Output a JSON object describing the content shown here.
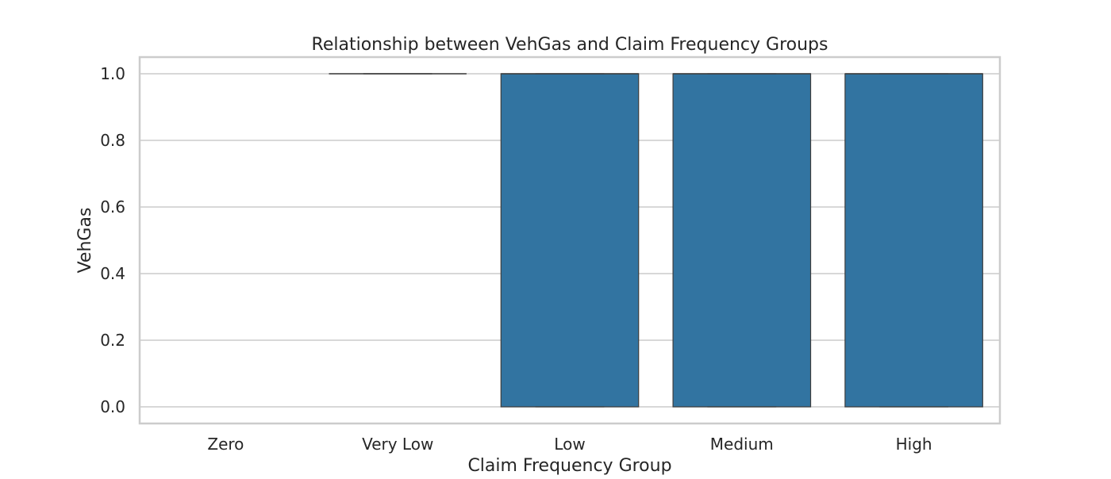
{
  "chart_data": {
    "type": "box",
    "title": "Relationship between VehGas and Claim Frequency Groups",
    "xlabel": "Claim Frequency Group",
    "ylabel": "VehGas",
    "categories": [
      "Zero",
      "Very Low",
      "Low",
      "Medium",
      "High"
    ],
    "ylim": [
      -0.05,
      1.05
    ],
    "yticks": [
      0.0,
      0.2,
      0.4,
      0.6,
      0.8,
      1.0
    ],
    "ytick_labels": [
      "0.0",
      "0.2",
      "0.4",
      "0.6",
      "0.8",
      "1.0"
    ],
    "grid": "y",
    "boxes": [
      {
        "category": "Zero",
        "q1": null,
        "median": null,
        "q3": null,
        "whisker_low": null,
        "whisker_high": null
      },
      {
        "category": "Very Low",
        "q1": 1.0,
        "median": 1.0,
        "q3": 1.0,
        "whisker_low": 1.0,
        "whisker_high": 1.0
      },
      {
        "category": "Low",
        "q1": 0.0,
        "median": 1.0,
        "q3": 1.0,
        "whisker_low": 0.0,
        "whisker_high": 1.0
      },
      {
        "category": "Medium",
        "q1": 0.0,
        "median": 1.0,
        "q3": 1.0,
        "whisker_low": 0.0,
        "whisker_high": 1.0
      },
      {
        "category": "High",
        "q1": 0.0,
        "median": 1.0,
        "q3": 1.0,
        "whisker_low": 0.0,
        "whisker_high": 1.0
      }
    ],
    "colors": {
      "box_fill": "#3274a1",
      "box_edge": "#3d3d3d",
      "grid": "#cccccc",
      "frame": "#cccccc",
      "text": "#262626"
    }
  }
}
